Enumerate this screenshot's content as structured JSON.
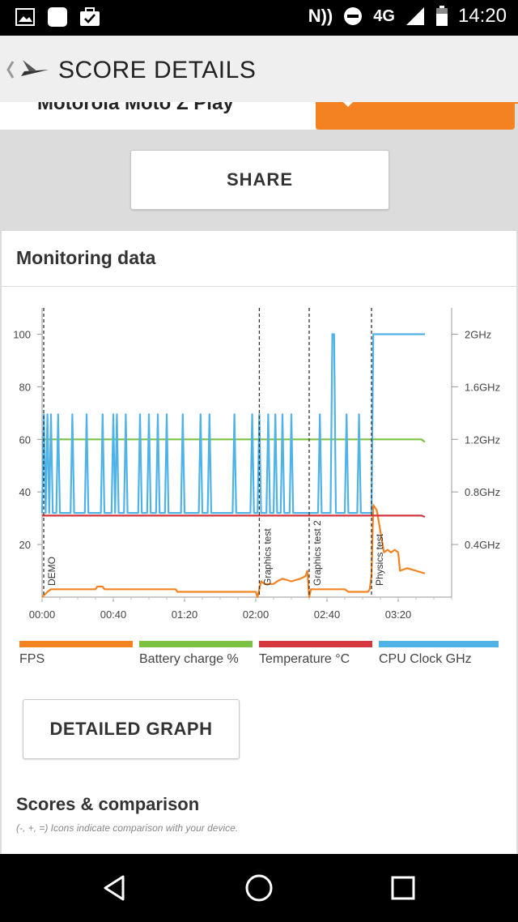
{
  "status_bar": {
    "network": "4G",
    "time": "14:20",
    "nfc_label": "N"
  },
  "app_bar": {
    "title": "SCORE DETAILS"
  },
  "device": {
    "name": "Motorola Moto Z Play"
  },
  "share_button": "SHARE",
  "monitoring": {
    "title": "Monitoring data",
    "legend": [
      {
        "label": "FPS",
        "color": "#f58220"
      },
      {
        "label": "Battery charge %",
        "color": "#7cc242"
      },
      {
        "label": "Temperature °C",
        "color": "#d6363e"
      },
      {
        "label": "CPU Clock GHz",
        "color": "#4fb3e8"
      }
    ],
    "detailed_graph_button": "DETAILED GRAPH"
  },
  "scores": {
    "title": "Scores & comparison",
    "subtitle": "(-, +, =) Icons indicate comparison with your device."
  },
  "chart_data": {
    "type": "line",
    "x_unit": "seconds",
    "xlim": [
      0,
      230
    ],
    "x_ticks": [
      {
        "value": 0,
        "label": "00:00"
      },
      {
        "value": 40,
        "label": "00:40"
      },
      {
        "value": 80,
        "label": "01:20"
      },
      {
        "value": 120,
        "label": "02:00"
      },
      {
        "value": 160,
        "label": "02:40"
      },
      {
        "value": 200,
        "label": "03:20"
      }
    ],
    "y_left": {
      "ticks": [
        20,
        40,
        60,
        80,
        100
      ],
      "ylim": [
        0,
        110
      ]
    },
    "y_right": {
      "ticks": [
        {
          "value": 0.4,
          "label": "0.4GHz"
        },
        {
          "value": 0.8,
          "label": "0.8GHz"
        },
        {
          "value": 1.2,
          "label": "1.2GHz"
        },
        {
          "value": 1.6,
          "label": "1.6GHz"
        },
        {
          "value": 2.0,
          "label": "2GHz"
        }
      ],
      "ylim": [
        0,
        2.2
      ]
    },
    "markers": [
      {
        "x": 0,
        "label": "DEMO"
      },
      {
        "x": 122,
        "label": "Graphics test"
      },
      {
        "x": 150,
        "label": "Graphics test 2"
      },
      {
        "x": 185,
        "label": "Physics test"
      }
    ],
    "series": [
      {
        "name": "FPS",
        "axis": "left",
        "color": "#f58220",
        "points": [
          [
            0,
            0
          ],
          [
            3,
            2
          ],
          [
            5,
            3
          ],
          [
            10,
            3
          ],
          [
            20,
            3
          ],
          [
            30,
            3
          ],
          [
            31,
            4
          ],
          [
            34,
            4
          ],
          [
            35,
            3
          ],
          [
            50,
            3
          ],
          [
            60,
            3
          ],
          [
            70,
            3
          ],
          [
            75,
            3
          ],
          [
            76,
            2
          ],
          [
            90,
            2
          ],
          [
            100,
            2
          ],
          [
            110,
            2
          ],
          [
            120,
            2
          ],
          [
            121,
            0
          ],
          [
            123,
            6
          ],
          [
            125,
            5
          ],
          [
            130,
            5
          ],
          [
            132,
            6
          ],
          [
            135,
            7
          ],
          [
            140,
            6
          ],
          [
            145,
            7
          ],
          [
            148,
            8
          ],
          [
            149,
            10
          ],
          [
            150,
            0
          ],
          [
            151,
            3
          ],
          [
            160,
            3
          ],
          [
            170,
            3
          ],
          [
            172,
            2
          ],
          [
            183,
            2
          ],
          [
            184,
            3
          ],
          [
            185,
            8
          ],
          [
            186,
            35
          ],
          [
            188,
            33
          ],
          [
            190,
            25
          ],
          [
            192,
            17
          ],
          [
            194,
            18
          ],
          [
            196,
            17
          ],
          [
            198,
            18
          ],
          [
            200,
            17
          ],
          [
            201,
            10
          ],
          [
            205,
            11
          ],
          [
            210,
            10
          ],
          [
            215,
            9
          ]
        ]
      },
      {
        "name": "Battery charge %",
        "axis": "left",
        "color": "#7cc242",
        "points": [
          [
            0,
            60
          ],
          [
            100,
            60
          ],
          [
            213,
            60
          ],
          [
            215,
            59
          ]
        ]
      },
      {
        "name": "Temperature °C",
        "axis": "left",
        "color": "#d6363e",
        "points": [
          [
            0,
            31
          ],
          [
            100,
            31
          ],
          [
            150,
            31
          ],
          [
            190,
            31
          ],
          [
            213,
            31
          ],
          [
            215,
            30.5
          ]
        ]
      },
      {
        "name": "CPU Clock GHz",
        "axis": "right",
        "color": "#4fb3e8",
        "points": [
          [
            0,
            0.64
          ],
          [
            1,
            1.39
          ],
          [
            2,
            0.64
          ],
          [
            3,
            1.39
          ],
          [
            4,
            0.64
          ],
          [
            5,
            1.39
          ],
          [
            6,
            0.64
          ],
          [
            8,
            0.64
          ],
          [
            9,
            1.39
          ],
          [
            10,
            0.64
          ],
          [
            16,
            0.64
          ],
          [
            17,
            1.39
          ],
          [
            18,
            0.64
          ],
          [
            24,
            0.64
          ],
          [
            25,
            1.39
          ],
          [
            26,
            0.64
          ],
          [
            33,
            0.64
          ],
          [
            34,
            1.39
          ],
          [
            35,
            0.64
          ],
          [
            39,
            0.64
          ],
          [
            40,
            1.39
          ],
          [
            41,
            0.64
          ],
          [
            42,
            1.39
          ],
          [
            43,
            0.64
          ],
          [
            46,
            0.64
          ],
          [
            47,
            1.39
          ],
          [
            48,
            0.64
          ],
          [
            54,
            0.64
          ],
          [
            55,
            1.39
          ],
          [
            56,
            0.64
          ],
          [
            59,
            0.64
          ],
          [
            60,
            1.39
          ],
          [
            61,
            0.64
          ],
          [
            64,
            0.64
          ],
          [
            65,
            1.39
          ],
          [
            66,
            0.64
          ],
          [
            69,
            0.64
          ],
          [
            70,
            1.39
          ],
          [
            71,
            0.64
          ],
          [
            78,
            0.64
          ],
          [
            79,
            1.39
          ],
          [
            80,
            0.64
          ],
          [
            88,
            0.64
          ],
          [
            89,
            1.39
          ],
          [
            90,
            0.64
          ],
          [
            93,
            0.64
          ],
          [
            94,
            1.39
          ],
          [
            95,
            0.64
          ],
          [
            107,
            0.64
          ],
          [
            108,
            1.39
          ],
          [
            109,
            0.64
          ],
          [
            117,
            0.64
          ],
          [
            118,
            1.39
          ],
          [
            119,
            0.64
          ],
          [
            121,
            0.64
          ],
          [
            122,
            1.39
          ],
          [
            123,
            0.64
          ],
          [
            126,
            0.64
          ],
          [
            127,
            1.39
          ],
          [
            128,
            0.64
          ],
          [
            130,
            0.64
          ],
          [
            131,
            1.39
          ],
          [
            132,
            0.64
          ],
          [
            134,
            0.64
          ],
          [
            135,
            1.39
          ],
          [
            136,
            0.64
          ],
          [
            139,
            0.64
          ],
          [
            140,
            1.39
          ],
          [
            141,
            0.64
          ],
          [
            155,
            0.64
          ],
          [
            156,
            1.39
          ],
          [
            157,
            0.64
          ],
          [
            162,
            0.64
          ],
          [
            163,
            2.0
          ],
          [
            164,
            2.0
          ],
          [
            165,
            0.64
          ],
          [
            170,
            0.64
          ],
          [
            171,
            1.39
          ],
          [
            172,
            0.64
          ],
          [
            177,
            0.64
          ],
          [
            178,
            1.39
          ],
          [
            179,
            0.64
          ],
          [
            185,
            0.64
          ],
          [
            186,
            2.0
          ],
          [
            215,
            2.0
          ]
        ]
      }
    ]
  }
}
